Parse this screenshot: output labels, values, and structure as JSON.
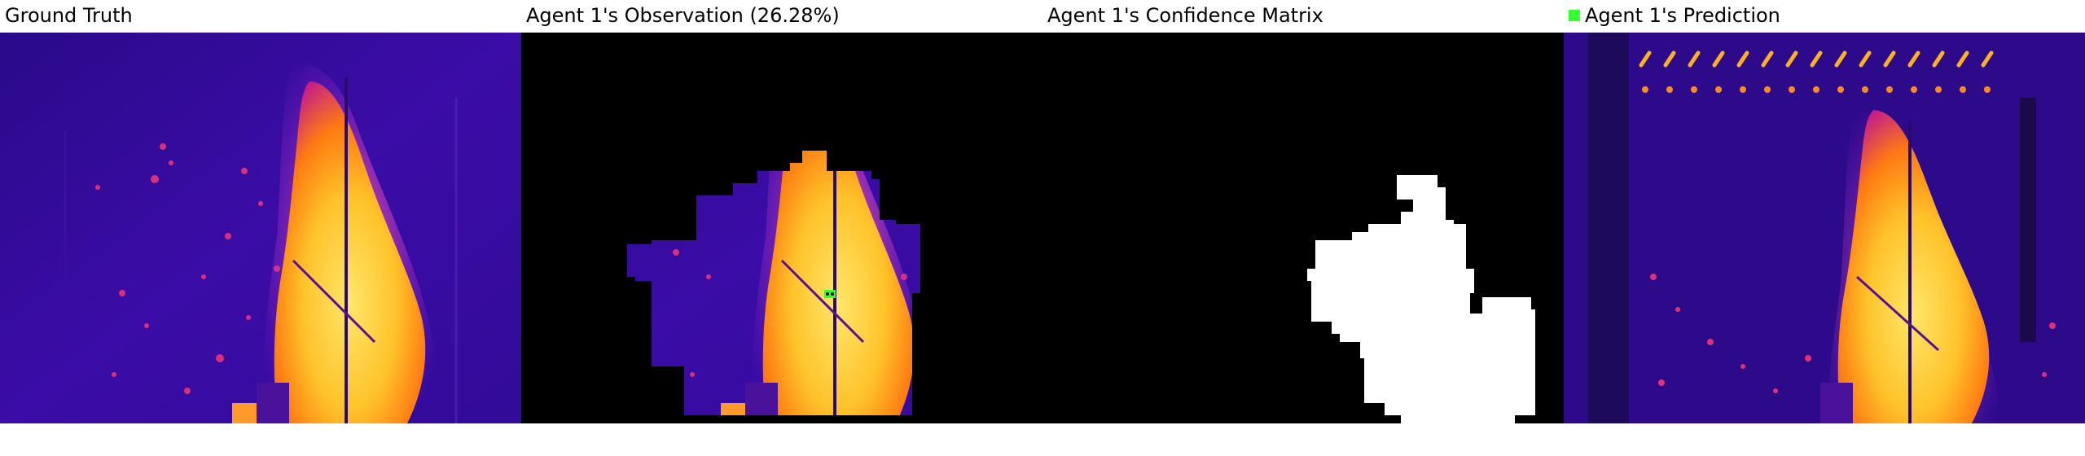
{
  "figure": {
    "panels": [
      {
        "title": "Ground Truth"
      },
      {
        "title": "Agent 1's Observation (26.28%)"
      },
      {
        "title": "Agent 1's Confidence Matrix"
      },
      {
        "title": "Agent 1's Prediction",
        "legend_color": "#33ff33"
      }
    ]
  },
  "colors": {
    "background_black": "#000000",
    "confidence_white": "#ffffff",
    "thermal_purple": "#3a0aa0",
    "thermal_yellow": "#ffd23a",
    "agent_marker_green": "#33ff33"
  }
}
